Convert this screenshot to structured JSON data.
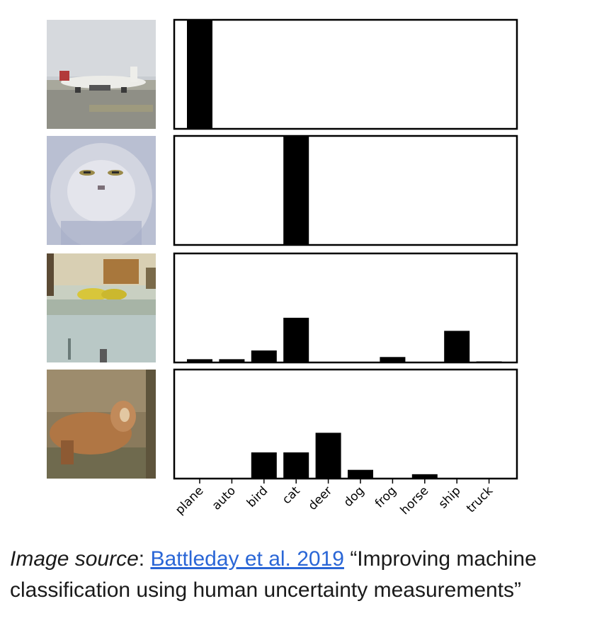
{
  "chart_data": {
    "type": "bar",
    "categories": [
      "plane",
      "auto",
      "bird",
      "cat",
      "deer",
      "dog",
      "frog",
      "horse",
      "ship",
      "truck"
    ],
    "ylim": [
      0,
      1
    ],
    "series": [
      {
        "values": [
          1.0,
          0,
          0,
          0,
          0,
          0,
          0,
          0,
          0,
          0
        ]
      },
      {
        "values": [
          0,
          0,
          0,
          1.0,
          0,
          0,
          0,
          0,
          0,
          0
        ]
      },
      {
        "values": [
          0.03,
          0.03,
          0.11,
          0.41,
          0,
          0,
          0.05,
          0,
          0.29,
          0.01
        ]
      },
      {
        "values": [
          0,
          0,
          0.24,
          0.24,
          0.42,
          0.08,
          0,
          0.04,
          0,
          0
        ]
      }
    ]
  },
  "thumbnails": [
    {
      "icon": "airplane-image"
    },
    {
      "icon": "cat-image"
    },
    {
      "icon": "ship-image"
    },
    {
      "icon": "deer-image"
    }
  ],
  "caption": {
    "prefix": "Image source",
    "separator": ": ",
    "link_text": "Battleday et al. 2019",
    "title": "“Improving machine classification using human uncertainty measurements”"
  }
}
